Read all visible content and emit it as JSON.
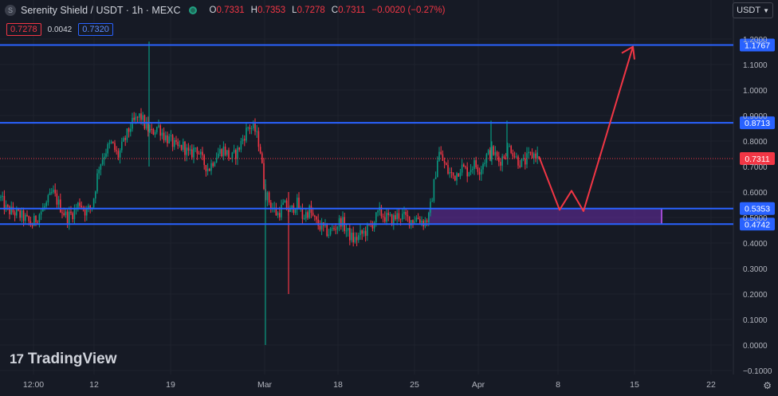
{
  "header": {
    "symbol_logo": "S",
    "title": "Serenity Shield / USDT · 1h · MEXC",
    "ohlc": [
      {
        "k": "O",
        "v": "0.7331"
      },
      {
        "k": "H",
        "v": "0.7353"
      },
      {
        "k": "L",
        "v": "0.7278"
      },
      {
        "k": "C",
        "v": "0.7311"
      }
    ],
    "change": "−0.0020 (−0.27%)"
  },
  "quote": {
    "bid": "0.7278",
    "spread": "0.0042",
    "ask": "0.7320"
  },
  "currency_button": "USDT",
  "brand": {
    "name": "TradingView",
    "mark": "17"
  },
  "colors": {
    "up": "#089981",
    "down": "#f23645",
    "level": "#2962ff",
    "zone": "#6a2ea8",
    "projection": "#f23645",
    "bg": "#161a25"
  },
  "chart_data": {
    "type": "candlestick",
    "symbol": "Serenity Shield / USDT",
    "interval": "1h",
    "exchange": "MEXC",
    "ylim": [
      -0.1,
      1.2
    ],
    "y_ticks": [
      "1.2000",
      "1.1000",
      "1.0000",
      "0.9000",
      "0.8000",
      "0.7000",
      "0.6000",
      "0.5000",
      "0.4000",
      "0.3000",
      "0.2000",
      "0.1000",
      "0.0000",
      "−0.1000"
    ],
    "x_ticks": [
      "12:00",
      "12",
      "19",
      "Mar",
      "18",
      "25",
      "Apr",
      "8",
      "15",
      "22"
    ],
    "horizontal_levels": [
      {
        "label": "1.1767",
        "value": 1.1767
      },
      {
        "label": "0.8713",
        "value": 0.8713
      },
      {
        "label": "0.5353",
        "value": 0.5353
      },
      {
        "label": "0.4742",
        "value": 0.4742
      }
    ],
    "last_price": {
      "label": "0.7311",
      "value": 0.7311
    },
    "price_path": [
      [
        0,
        0.58
      ],
      [
        8,
        0.53
      ],
      [
        18,
        0.52
      ],
      [
        30,
        0.5
      ],
      [
        40,
        0.47
      ],
      [
        48,
        0.51
      ],
      [
        58,
        0.55
      ],
      [
        66,
        0.6
      ],
      [
        74,
        0.55
      ],
      [
        84,
        0.5
      ],
      [
        92,
        0.52
      ],
      [
        100,
        0.56
      ],
      [
        108,
        0.52
      ],
      [
        116,
        0.55
      ],
      [
        124,
        0.7
      ],
      [
        132,
        0.76
      ],
      [
        140,
        0.79
      ],
      [
        148,
        0.74
      ],
      [
        156,
        0.8
      ],
      [
        164,
        0.86
      ],
      [
        170,
        0.88
      ],
      [
        176,
        0.9
      ],
      [
        182,
        0.86
      ],
      [
        190,
        0.83
      ],
      [
        198,
        0.86
      ],
      [
        206,
        0.82
      ],
      [
        214,
        0.8
      ],
      [
        222,
        0.77
      ],
      [
        230,
        0.78
      ],
      [
        238,
        0.74
      ],
      [
        246,
        0.78
      ],
      [
        254,
        0.72
      ],
      [
        262,
        0.69
      ],
      [
        270,
        0.74
      ],
      [
        280,
        0.77
      ],
      [
        290,
        0.73
      ],
      [
        298,
        0.76
      ],
      [
        306,
        0.82
      ],
      [
        312,
        0.86
      ],
      [
        320,
        0.84
      ],
      [
        326,
        0.78
      ],
      [
        332,
        0.6
      ],
      [
        340,
        0.55
      ],
      [
        348,
        0.51
      ],
      [
        356,
        0.55
      ],
      [
        364,
        0.52
      ],
      [
        372,
        0.56
      ],
      [
        380,
        0.5
      ],
      [
        388,
        0.53
      ],
      [
        396,
        0.48
      ],
      [
        404,
        0.46
      ],
      [
        412,
        0.44
      ],
      [
        420,
        0.46
      ],
      [
        428,
        0.49
      ],
      [
        436,
        0.44
      ],
      [
        444,
        0.41
      ],
      [
        452,
        0.43
      ],
      [
        460,
        0.45
      ],
      [
        468,
        0.48
      ],
      [
        476,
        0.52
      ],
      [
        484,
        0.5
      ],
      [
        492,
        0.49
      ],
      [
        500,
        0.51
      ],
      [
        508,
        0.5
      ],
      [
        516,
        0.49
      ],
      [
        524,
        0.5
      ],
      [
        532,
        0.48
      ],
      [
        538,
        0.5
      ],
      [
        544,
        0.62
      ],
      [
        550,
        0.76
      ],
      [
        556,
        0.72
      ],
      [
        562,
        0.68
      ],
      [
        570,
        0.66
      ],
      [
        578,
        0.7
      ],
      [
        586,
        0.68
      ],
      [
        594,
        0.71
      ],
      [
        602,
        0.69
      ],
      [
        610,
        0.74
      ],
      [
        618,
        0.76
      ],
      [
        626,
        0.72
      ],
      [
        634,
        0.75
      ],
      [
        640,
        0.78
      ],
      [
        648,
        0.73
      ],
      [
        656,
        0.71
      ],
      [
        664,
        0.74
      ],
      [
        672,
        0.75
      ],
      [
        676,
        0.74
      ]
    ],
    "projection_path": [
      [
        676,
        0.74
      ],
      [
        702,
        0.53
      ],
      [
        717,
        0.605
      ],
      [
        732,
        0.525
      ],
      [
        794,
        1.17
      ]
    ],
    "zone": {
      "x0": 538,
      "x1": 830,
      "y_top": 0.5353,
      "y_bottom": 0.4742
    }
  }
}
